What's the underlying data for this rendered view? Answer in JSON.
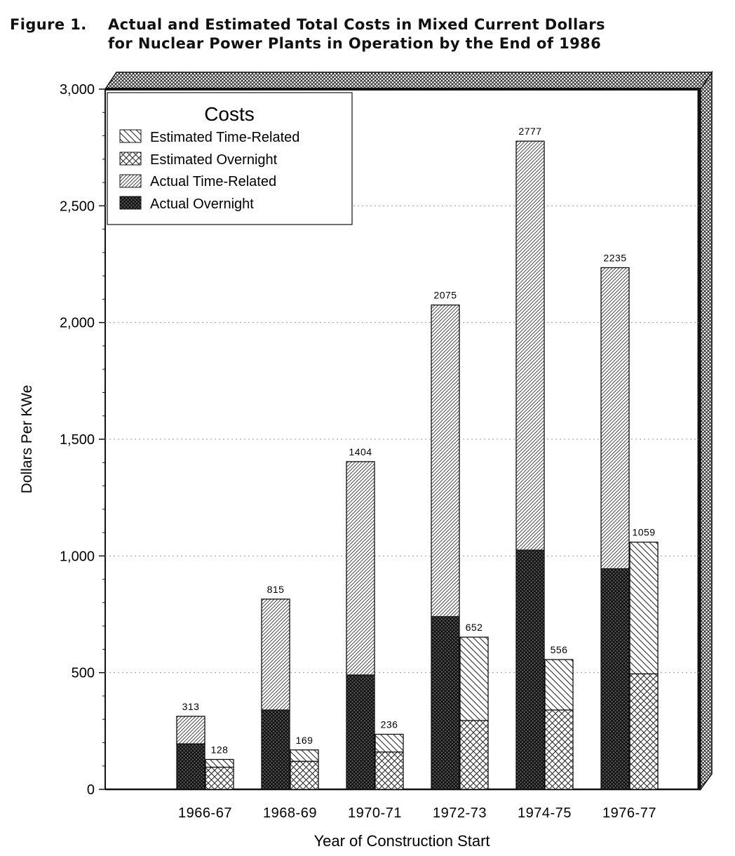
{
  "figure": {
    "label": "Figure 1.",
    "title_line1": "Actual and Estimated Total Costs in Mixed Current Dollars",
    "title_line2": "for Nuclear Power Plants in Operation by the End of 1986"
  },
  "chart_data": {
    "type": "bar",
    "stacked": true,
    "title": "Actual and Estimated Total Costs in Mixed Current Dollars for Nuclear Power Plants in Operation by the End of 1986",
    "xlabel": "Year of Construction Start",
    "ylabel": "Dollars Per KWe",
    "ylim": [
      0,
      3000
    ],
    "yticks": [
      0,
      500,
      1000,
      1500,
      2000,
      2500,
      3000
    ],
    "ytick_labels": [
      "0",
      "500",
      "1,000",
      "1,500",
      "2,000",
      "2,500",
      "3,000"
    ],
    "grid": true,
    "legend_title": "Costs",
    "legend_position": "top-left",
    "legend_entries": [
      "Estimated Time-Related",
      "Estimated Overnight",
      "Actual Time-Related",
      "Actual Overnight"
    ],
    "categories": [
      "1966-67",
      "1968-69",
      "1970-71",
      "1972-73",
      "1974-75",
      "1976-77"
    ],
    "series": [
      {
        "name": "Actual Overnight",
        "group": "actual",
        "values": [
          195,
          340,
          490,
          740,
          1025,
          945
        ]
      },
      {
        "name": "Actual Time-Related",
        "group": "actual",
        "values": [
          118,
          475,
          914,
          1335,
          1752,
          1290
        ]
      },
      {
        "name": "Estimated Overnight",
        "group": "estimated",
        "values": [
          95,
          120,
          160,
          295,
          340,
          495
        ]
      },
      {
        "name": "Estimated Time-Related",
        "group": "estimated",
        "values": [
          33,
          49,
          76,
          357,
          216,
          564
        ]
      }
    ],
    "actual_totals": [
      313,
      815,
      1404,
      2075,
      2777,
      2235
    ],
    "estimated_totals": [
      128,
      169,
      236,
      652,
      556,
      1059
    ]
  }
}
